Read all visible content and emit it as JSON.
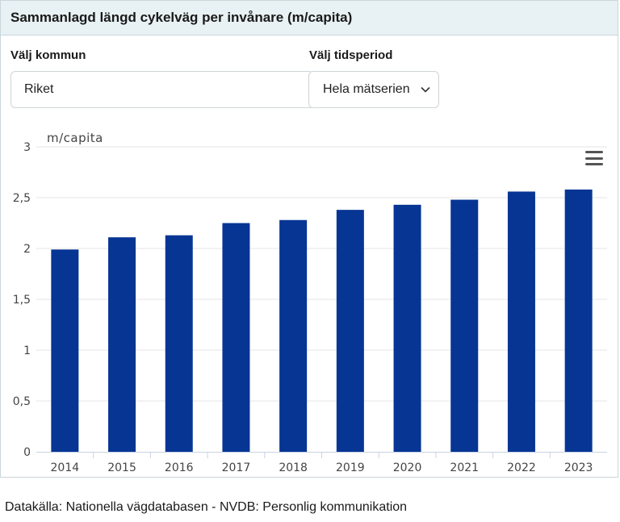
{
  "panel": {
    "title": "Sammanlagd längd cykelväg per invånare (m/capita)"
  },
  "filters": {
    "kommun_label": "Välj kommun",
    "kommun_value": "Riket",
    "period_label": "Välj tidsperiod",
    "period_value": "Hela mätserien"
  },
  "icons": {
    "period_chevron": "chevron-down-icon",
    "chart_menu": "hamburger-menu-icon"
  },
  "colors": {
    "bar": "#063594",
    "gridline": "#e6e6e6",
    "header_bg": "#e8f1f3"
  },
  "chart_data": {
    "type": "bar",
    "ylabel": "m/capita",
    "categories": [
      "2014",
      "2015",
      "2016",
      "2017",
      "2018",
      "2019",
      "2020",
      "2021",
      "2022",
      "2023"
    ],
    "values": [
      1.99,
      2.11,
      2.13,
      2.25,
      2.28,
      2.38,
      2.43,
      2.48,
      2.56,
      2.58
    ],
    "ylim": [
      0,
      3
    ],
    "yticks": [
      "0",
      "0,5",
      "1",
      "1,5",
      "2",
      "2,5",
      "3"
    ],
    "grid": true
  },
  "footer": {
    "source": "Datakälla: Nationella vägdatabasen - NVDB: Personlig kommunikation"
  }
}
